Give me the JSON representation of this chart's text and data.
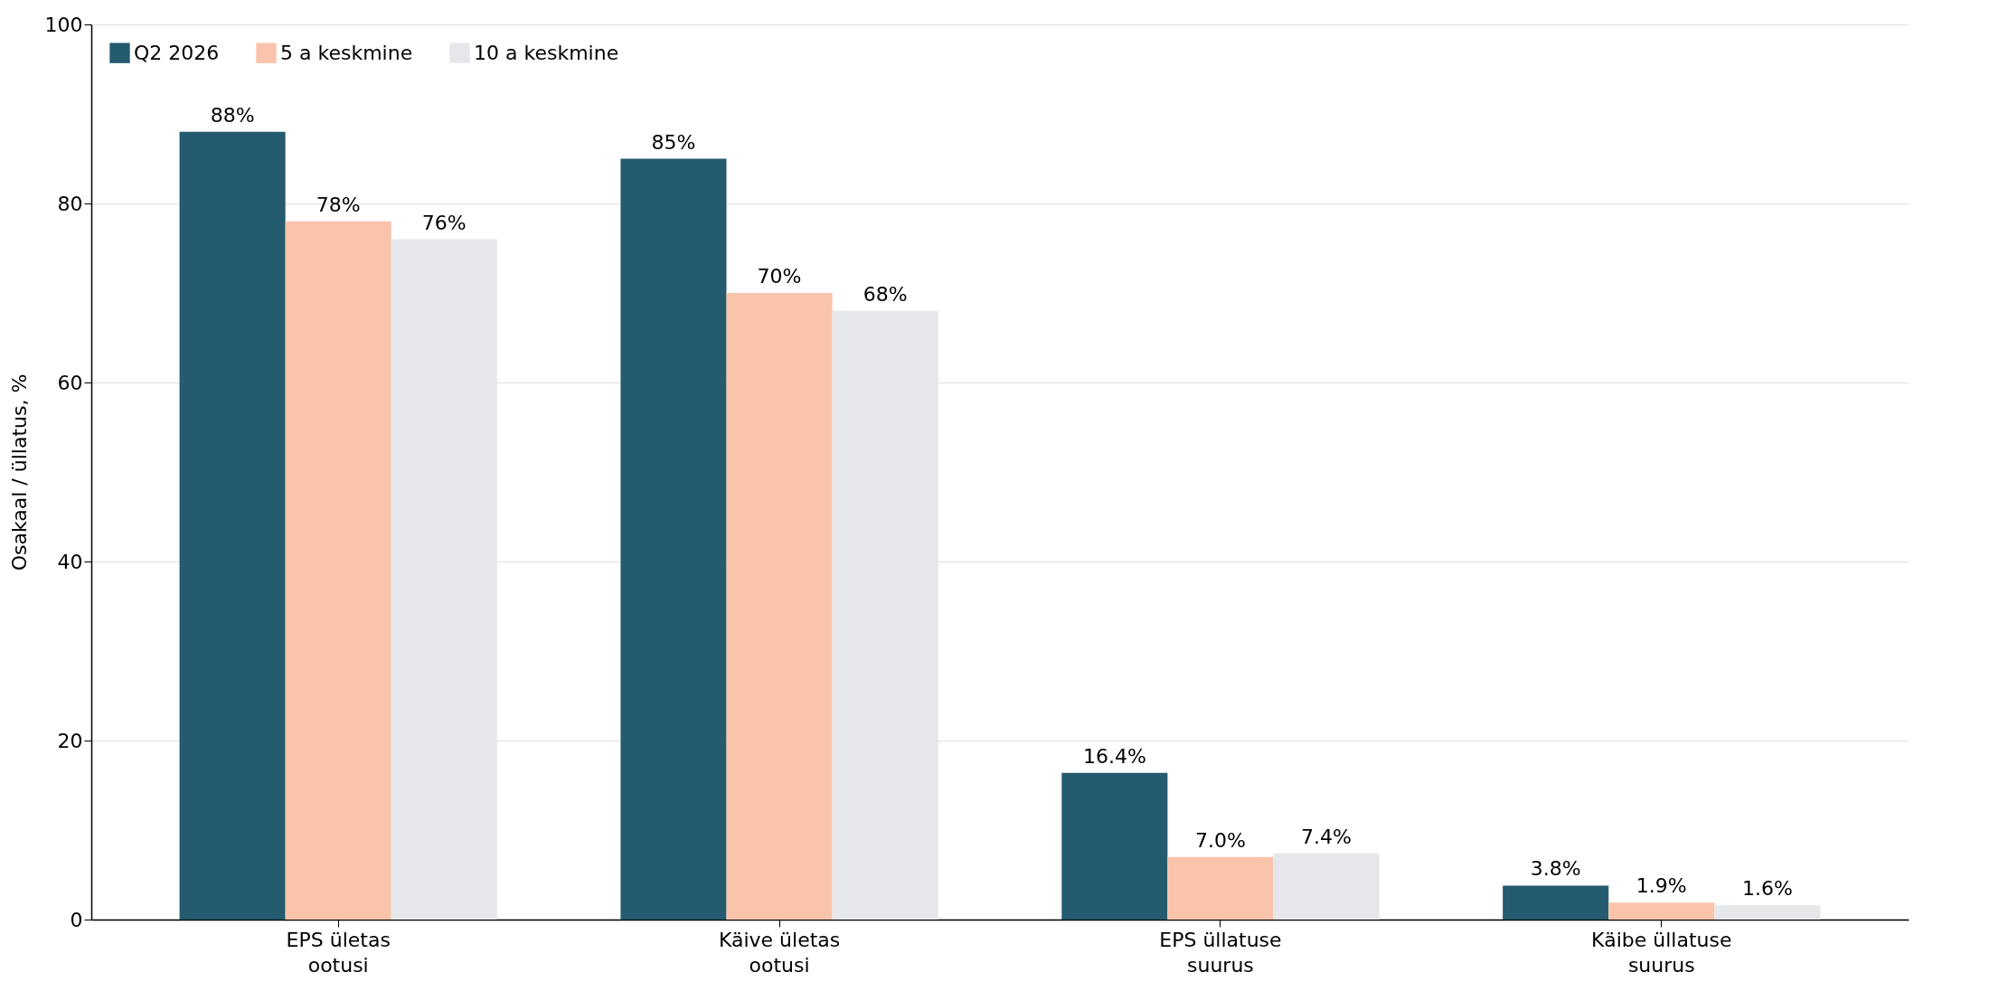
{
  "chart_data": {
    "type": "bar",
    "ylabel": "Osakaal / üllatus, %",
    "categories": [
      "EPS ületas ootusi",
      "Käive ületas ootusi",
      "EPS üllatuse suurus",
      "Käibe üllatuse suurus"
    ],
    "series": [
      {
        "name": "Q2 2026",
        "color": "#245b6e",
        "values": [
          88,
          85,
          16.4,
          3.8
        ],
        "value_labels": [
          "88%",
          "85%",
          "16.4%",
          "3.8%"
        ]
      },
      {
        "name": "5 a keskmine",
        "color": "#f9c4ab",
        "values": [
          78,
          70,
          7.0,
          1.9
        ],
        "value_labels": [
          "78%",
          "70%",
          "7.0%",
          "1.9%"
        ]
      },
      {
        "name": "10 a keskmine",
        "color": "#e6e7ea",
        "values": [
          76,
          68,
          7.4,
          1.6
        ],
        "value_labels": [
          "76%",
          "68%",
          "7.4%",
          "1.6%"
        ]
      }
    ],
    "ylim": [
      0,
      100
    ],
    "yticks": [
      0,
      20,
      40,
      60,
      80,
      100
    ],
    "grid": "y",
    "legend": "top left"
  }
}
